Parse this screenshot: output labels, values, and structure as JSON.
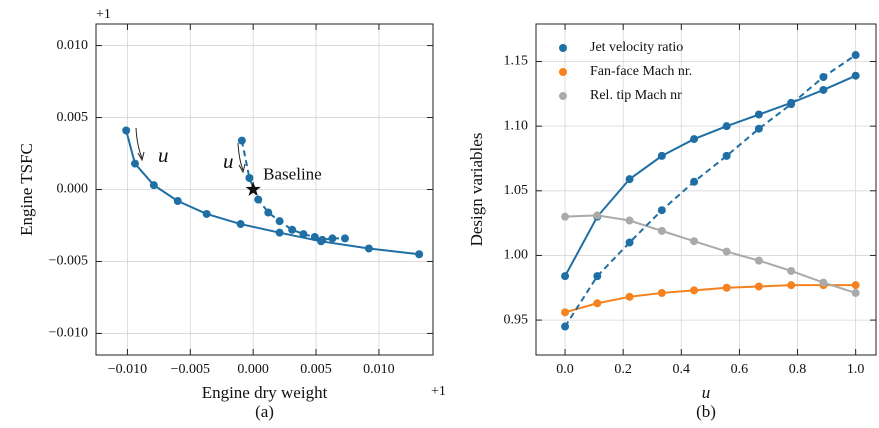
{
  "chart_data": [
    {
      "type": "line",
      "xlabel": "Engine dry weight",
      "ylabel": "Engine TSFC",
      "caption": "(a)",
      "x_offset_label": "+1",
      "y_offset_label": "+1",
      "xlim": [
        -0.0125,
        0.0143
      ],
      "ylim": [
        -0.0115,
        0.0115
      ],
      "xticks": [
        {
          "value": -0.01,
          "label": "−0.010"
        },
        {
          "value": -0.005,
          "label": "−0.005"
        },
        {
          "value": 0,
          "label": "0.000"
        },
        {
          "value": 0.005,
          "label": "0.005"
        },
        {
          "value": 0.01,
          "label": "0.010"
        }
      ],
      "yticks": [
        {
          "value": -0.01,
          "label": "−0.010"
        },
        {
          "value": -0.005,
          "label": "−0.005"
        },
        {
          "value": 0,
          "label": "0.000"
        },
        {
          "value": 0.005,
          "label": "0.005"
        },
        {
          "value": 0.01,
          "label": "0.010"
        }
      ],
      "grid": true,
      "series": [
        {
          "color": "#1f6fa5",
          "linestyle": "solid",
          "x": [
            -0.0101,
            -0.0094,
            -0.0079,
            -0.006,
            -0.0037,
            -0.001,
            0.0021,
            0.0054,
            0.0092,
            0.0132
          ],
          "values": [
            0.0041,
            0.0018,
            0.0003,
            -0.0008,
            -0.0017,
            -0.0024,
            -0.003,
            -0.0036,
            -0.0041,
            -0.0045
          ]
        },
        {
          "color": "#1f6fa5",
          "linestyle": "dashed",
          "x": [
            -0.0009,
            -0.0003,
            0.0004,
            0.0012,
            0.0021,
            0.0031,
            0.004,
            0.0049,
            0.0055,
            0.0063,
            0.0073
          ],
          "values": [
            0.0034,
            0.0008,
            -0.0007,
            -0.0016,
            -0.0022,
            -0.0028,
            -0.0031,
            -0.0033,
            -0.0035,
            -0.0034,
            -0.0034
          ]
        }
      ],
      "annotations": [
        "u",
        "u"
      ],
      "baseline": {
        "label": "Baseline",
        "x": 0,
        "y": 0
      }
    },
    {
      "type": "line",
      "xlabel": "u",
      "ylabel": "Design variables",
      "caption": "(b)",
      "xlim": [
        -0.1,
        1.07
      ],
      "ylim": [
        0.923,
        1.179
      ],
      "xticks": [
        {
          "value": 0,
          "label": "0.0"
        },
        0.2,
        0.4,
        0.6,
        0.8,
        {
          "value": 1,
          "label": "1.0"
        }
      ],
      "yticks": [
        0.95,
        {
          "value": 1,
          "label": "1.00"
        },
        1.05,
        {
          "value": 1.1,
          "label": "1.10"
        },
        1.15
      ],
      "grid": true,
      "legend": "upper left",
      "x": [
        0,
        0.111,
        0.222,
        0.333,
        0.444,
        0.556,
        0.667,
        0.778,
        0.889,
        1
      ],
      "series": [
        {
          "name": "Jet velocity ratio",
          "color": "#1f6fa5",
          "linestyle": "solid",
          "values": [
            0.984,
            1.03,
            1.059,
            1.077,
            1.09,
            1.1,
            1.109,
            1.118,
            1.128,
            1.139
          ]
        },
        {
          "name": "Fan-face Mach nr.",
          "color": "#f5821f",
          "linestyle": "solid",
          "values": [
            0.956,
            0.963,
            0.968,
            0.971,
            0.973,
            0.975,
            0.976,
            0.977,
            0.977,
            0.977
          ]
        },
        {
          "name": "Rel. tip Mach nr",
          "color": "#aaaaaa",
          "linestyle": "solid",
          "values": [
            1.03,
            1.031,
            1.027,
            1.019,
            1.011,
            1.003,
            0.996,
            0.988,
            0.979,
            0.971
          ]
        },
        {
          "color": "#1f6fa5",
          "linestyle": "dashed",
          "values": [
            0.945,
            0.984,
            1.01,
            1.035,
            1.057,
            1.077,
            1.098,
            1.117,
            1.138,
            1.155
          ]
        }
      ]
    }
  ]
}
